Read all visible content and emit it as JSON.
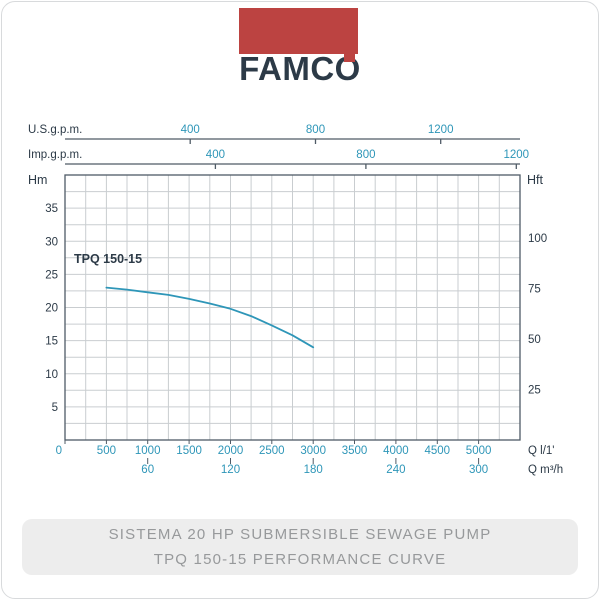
{
  "logo": {
    "brand": "FAMCO"
  },
  "colors": {
    "accent_red": "#bc4341",
    "navy": "#2c3a47",
    "teal": "#2e96b8",
    "grid": "#c9cdd0",
    "axis": "#4f5b66",
    "footer_bg": "#ededed",
    "footer_text": "#97999b"
  },
  "chart": {
    "curve_label": "TPQ 150-15",
    "grid": {
      "x_step": 250,
      "y_step": 2.5
    },
    "axes": {
      "top1": {
        "label": "U.S.g.p.m.",
        "ticks": [
          400,
          800,
          1200
        ],
        "factor": 3.785
      },
      "top2": {
        "label": "Imp.g.p.m.",
        "ticks": [
          400,
          800,
          1200
        ],
        "factor": 4.546
      },
      "left": {
        "label": "Hm",
        "ticks": [
          5,
          10,
          15,
          20,
          25,
          30,
          35
        ]
      },
      "right": {
        "label": "Hft",
        "ticks": [
          25,
          50,
          75,
          100
        ],
        "factor": 0.3048
      },
      "bottom1": {
        "label": "Q l/1'",
        "ticks": [
          0,
          500,
          1000,
          1500,
          2000,
          2500,
          3000,
          3500,
          4000,
          4500,
          5000
        ],
        "factor": 1
      },
      "bottom2": {
        "label": "Q m³/h",
        "ticks": [
          60,
          120,
          180,
          240,
          300
        ],
        "factor": 16.667
      }
    }
  },
  "chart_data": {
    "type": "line",
    "title": "TPQ 150-15 Performance Curve",
    "xlabel": "Q l/1' (also shown as Q m³/h, U.S.g.p.m., Imp.g.p.m.)",
    "ylabel": "Hm (also shown as Hft)",
    "xlim": [
      0,
      5500
    ],
    "ylim": [
      0,
      40
    ],
    "grid": true,
    "series": [
      {
        "name": "TPQ 150-15",
        "x": [
          500,
          750,
          1000,
          1250,
          1500,
          1750,
          2000,
          2250,
          2500,
          2750,
          3000
        ],
        "y": [
          23,
          22.7,
          22.3,
          21.9,
          21.3,
          20.6,
          19.8,
          18.7,
          17.3,
          15.8,
          14
        ]
      }
    ]
  },
  "footer": {
    "line1": "SISTEMA 20 HP SUBMERSIBLE SEWAGE PUMP",
    "line2": "TPQ 150-15 PERFORMANCE CURVE"
  }
}
